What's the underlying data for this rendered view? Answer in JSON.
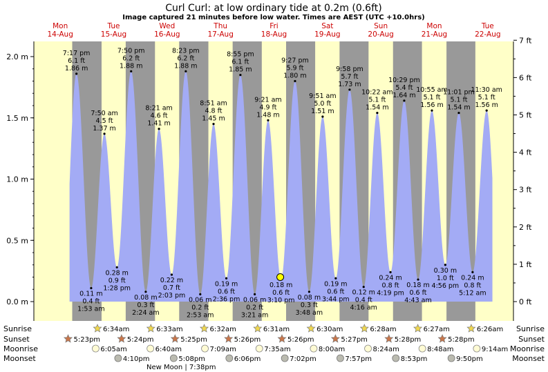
{
  "header": {
    "title": "Curl Curl: at low  ordinary tide at 0.2m (0.6ft)",
    "subtitle": "Image captured 21 minutes before low water. Times are AEST (UTC +10.0hrs)"
  },
  "colors": {
    "day": "#ffffc8",
    "night": "#999999",
    "tide_fill": "#a3abf5",
    "day_label": "#cc0000",
    "text": "#000000",
    "current_marker": "#ffff00"
  },
  "days": [
    {
      "name": "Mon",
      "date": "14-Aug"
    },
    {
      "name": "Tue",
      "date": "15-Aug"
    },
    {
      "name": "Wed",
      "date": "16-Aug"
    },
    {
      "name": "Thu",
      "date": "17-Aug"
    },
    {
      "name": "Fri",
      "date": "18-Aug"
    },
    {
      "name": "Sat",
      "date": "19-Aug"
    },
    {
      "name": "Sun",
      "date": "20-Aug"
    },
    {
      "name": "Mon",
      "date": "21-Aug"
    },
    {
      "name": "Tue",
      "date": "22-Aug"
    }
  ],
  "axes": {
    "left_ticks": [
      "0.0 m",
      "0.5 m",
      "1.0 m",
      "1.5 m",
      "2.0 m"
    ],
    "right_ticks": [
      "0 ft",
      "1 ft",
      "2 ft",
      "3 ft",
      "4 ft",
      "5 ft",
      "6 ft",
      "7 ft"
    ]
  },
  "bottom_labels": {
    "sunrise": "Sunrise",
    "sunset": "Sunset",
    "moonrise": "Moonrise",
    "moonset": "Moonset"
  },
  "events": {
    "sunrise": [
      "6:34am",
      "6:33am",
      "6:32am",
      "6:31am",
      "6:30am",
      "6:28am",
      "6:27am",
      "6:26am"
    ],
    "sunset": [
      "5:23pm",
      "5:24pm",
      "5:25pm",
      "5:26pm",
      "5:26pm",
      "5:27pm",
      "5:28pm",
      "5:28pm"
    ],
    "moonrise": [
      "6:05am",
      "6:40am",
      "7:09am",
      "7:35am",
      "8:00am",
      "8:24am",
      "8:48am",
      "9:14am"
    ],
    "moonset": [
      "4:10pm",
      "5:08pm",
      "6:06pm",
      "7:02pm",
      "7:57pm",
      "8:53pm",
      "9:50pm"
    ],
    "new_moon": "New Moon | 7:38pm"
  },
  "chart_data": {
    "type": "area",
    "title": "Curl Curl: at low  ordinary tide at 0.2m (0.6ft)",
    "ylabel": "",
    "xlabel": "",
    "ylim": [
      -0.05,
      2.12
    ],
    "y_unit": "m",
    "y2_unit": "ft",
    "tides": [
      {
        "kind": "high",
        "day": "14-Aug",
        "time": "7:17 pm",
        "ft": "6.1 ft",
        "m": "1.86 m",
        "value": 1.86
      },
      {
        "kind": "low",
        "day": "15-Aug",
        "time": "1:53 am",
        "ft": "0.4 ft",
        "m": "0.11 m",
        "value": 0.11
      },
      {
        "kind": "high",
        "day": "15-Aug",
        "time": "7:50 am",
        "ft": "4.5 ft",
        "m": "1.37 m",
        "value": 1.37
      },
      {
        "kind": "low",
        "day": "15-Aug",
        "time": "1:28 pm",
        "ft": "0.9 ft",
        "m": "0.28 m",
        "value": 0.28
      },
      {
        "kind": "high",
        "day": "15-Aug",
        "time": "7:50 pm",
        "ft": "6.2 ft",
        "m": "1.88 m",
        "value": 1.88
      },
      {
        "kind": "low",
        "day": "16-Aug",
        "time": "2:24 am",
        "ft": "0.3 ft",
        "m": "0.08 m",
        "value": 0.08
      },
      {
        "kind": "high",
        "day": "16-Aug",
        "time": "8:21 am",
        "ft": "4.6 ft",
        "m": "1.41 m",
        "value": 1.41
      },
      {
        "kind": "low",
        "day": "16-Aug",
        "time": "2:03 pm",
        "ft": "0.7 ft",
        "m": "0.22 m",
        "value": 0.22
      },
      {
        "kind": "high",
        "day": "16-Aug",
        "time": "8:23 pm",
        "ft": "6.2 ft",
        "m": "1.88 m",
        "value": 1.88
      },
      {
        "kind": "low",
        "day": "17-Aug",
        "time": "2:53 am",
        "ft": "0.2 ft",
        "m": "0.06 m",
        "value": 0.06
      },
      {
        "kind": "high",
        "day": "17-Aug",
        "time": "8:51 am",
        "ft": "4.8 ft",
        "m": "1.45 m",
        "value": 1.45
      },
      {
        "kind": "low",
        "day": "17-Aug",
        "time": "2:36 pm",
        "ft": "0.6 ft",
        "m": "0.19 m",
        "value": 0.19
      },
      {
        "kind": "high",
        "day": "17-Aug",
        "time": "8:55 pm",
        "ft": "6.1 ft",
        "m": "1.85 m",
        "value": 1.85
      },
      {
        "kind": "low",
        "day": "18-Aug",
        "time": "3:21 am",
        "ft": "0.2 ft",
        "m": "0.06 m",
        "value": 0.06
      },
      {
        "kind": "high",
        "day": "18-Aug",
        "time": "9:21 am",
        "ft": "4.9 ft",
        "m": "1.48 m",
        "value": 1.48
      },
      {
        "kind": "low",
        "day": "18-Aug",
        "time": "3:10 pm",
        "ft": "0.6 ft",
        "m": "0.18 m",
        "value": 0.18
      },
      {
        "kind": "high",
        "day": "18-Aug",
        "time": "9:27 pm",
        "ft": "5.9 ft",
        "m": "1.80 m",
        "value": 1.8
      },
      {
        "kind": "low",
        "day": "19-Aug",
        "time": "3:48 am",
        "ft": "0.3 ft",
        "m": "0.08 m",
        "value": 0.08
      },
      {
        "kind": "high",
        "day": "19-Aug",
        "time": "9:51 am",
        "ft": "5.0 ft",
        "m": "1.51 m",
        "value": 1.51
      },
      {
        "kind": "low",
        "day": "19-Aug",
        "time": "3:44 pm",
        "ft": "0.6 ft",
        "m": "0.19 m",
        "value": 0.19
      },
      {
        "kind": "high",
        "day": "19-Aug",
        "time": "9:58 pm",
        "ft": "5.7 ft",
        "m": "1.73 m",
        "value": 1.73
      },
      {
        "kind": "low",
        "day": "20-Aug",
        "time": "4:16 am",
        "ft": "0.4 ft",
        "m": "0.12 m",
        "value": 0.12
      },
      {
        "kind": "high",
        "day": "20-Aug",
        "time": "10:22 am",
        "ft": "5.1 ft",
        "m": "1.54 m",
        "value": 1.54
      },
      {
        "kind": "low",
        "day": "20-Aug",
        "time": "4:19 pm",
        "ft": "0.8 ft",
        "m": "0.24 m",
        "value": 0.24
      },
      {
        "kind": "high",
        "day": "20-Aug",
        "time": "10:29 pm",
        "ft": "5.4 ft",
        "m": "1.64 m",
        "value": 1.64
      },
      {
        "kind": "low",
        "day": "21-Aug",
        "time": "4:43 am",
        "ft": "0.6 ft",
        "m": "0.18 m",
        "value": 0.18
      },
      {
        "kind": "high",
        "day": "21-Aug",
        "time": "10:55 am",
        "ft": "5.1 ft",
        "m": "1.56 m",
        "value": 1.56
      },
      {
        "kind": "low",
        "day": "21-Aug",
        "time": "4:56 pm",
        "ft": "1.0 ft",
        "m": "0.30 m",
        "value": 0.3
      },
      {
        "kind": "high",
        "day": "21-Aug",
        "time": "11:01 pm",
        "ft": "5.1 ft",
        "m": "1.54 m",
        "value": 1.54
      },
      {
        "kind": "low",
        "day": "22-Aug",
        "time": "5:12 am",
        "ft": "0.8 ft",
        "m": "0.24 m",
        "value": 0.24
      },
      {
        "kind": "high",
        "day": "22-Aug",
        "time": "11:30 am",
        "ft": "5.1 ft",
        "m": "1.56 m",
        "value": 1.56
      }
    ],
    "current": {
      "value": 0.2
    }
  }
}
